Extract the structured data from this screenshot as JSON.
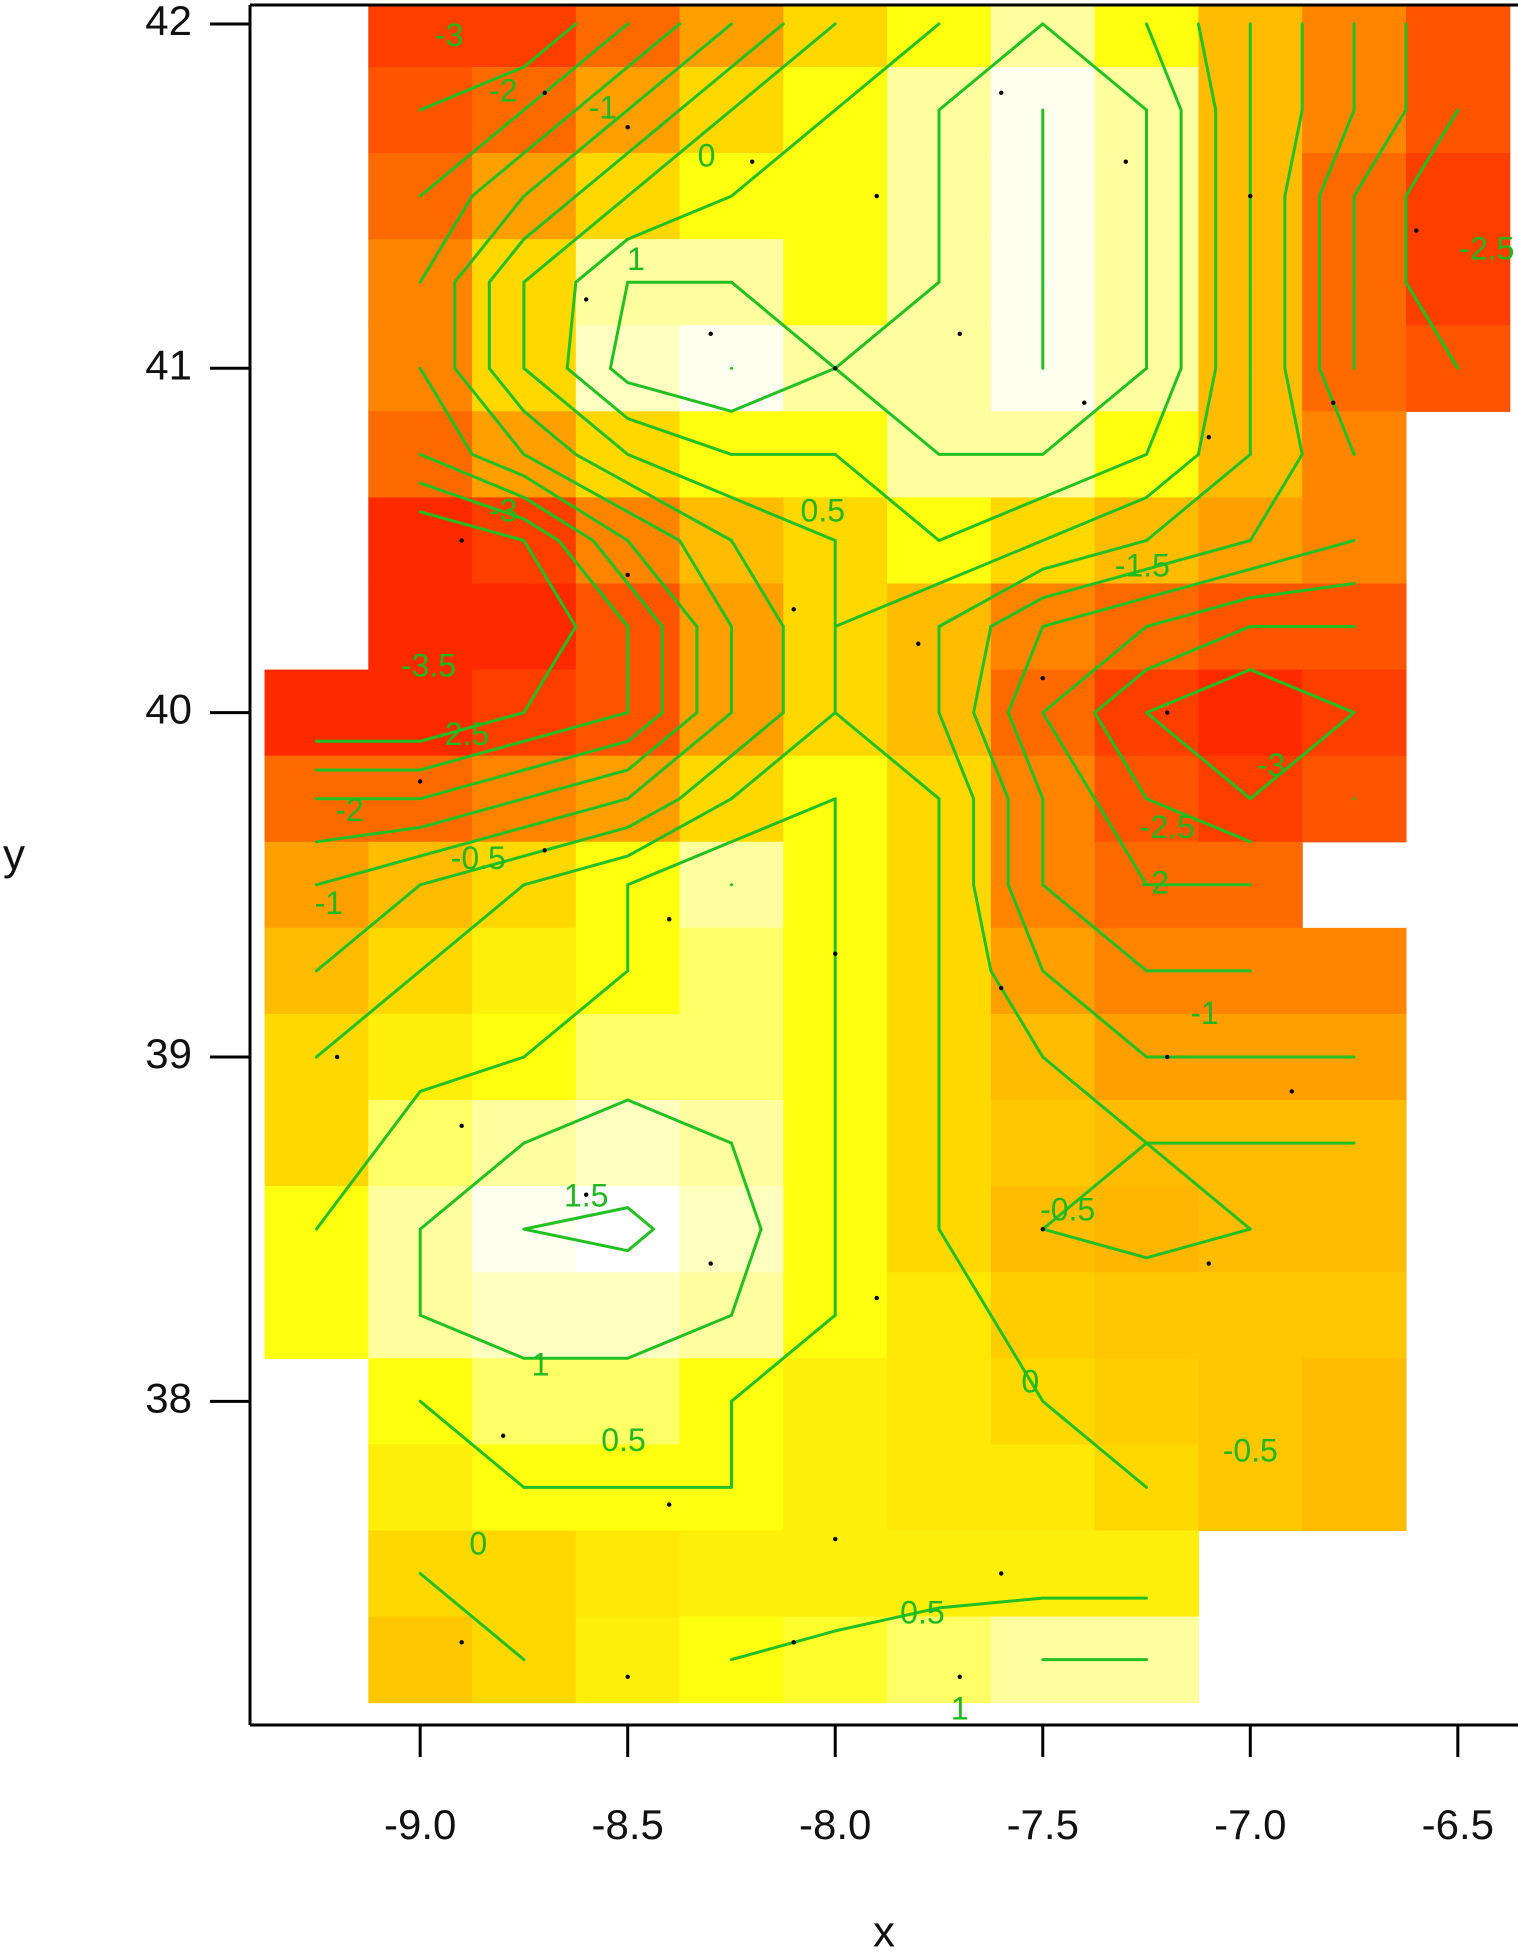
{
  "chart_data": {
    "type": "contour",
    "x_label": "x",
    "y_label": "y",
    "xlim": [
      -9.41,
      -6.355
    ],
    "ylim": [
      37.06,
      42.055
    ],
    "xticks": [
      {
        "value": -9,
        "label": "-9.0"
      },
      -8.5,
      {
        "value": -8,
        "label": "-8.0"
      },
      -7.5,
      {
        "value": -7,
        "label": "-7.0"
      },
      -6.5
    ],
    "yticks": [
      38,
      39,
      40,
      41,
      42
    ],
    "x": [
      -9.25,
      -9.0,
      -8.75,
      -8.5,
      -8.25,
      -8.0,
      -7.75,
      -7.5,
      -7.25,
      -7.0,
      -6.75,
      -6.5
    ],
    "y": [
      42.0,
      41.75,
      41.5,
      41.25,
      41.0,
      40.75,
      40.5,
      40.25,
      40.0,
      39.75,
      39.5,
      39.25,
      39.0,
      38.75,
      38.5,
      38.25,
      38.0,
      37.75,
      37.5,
      37.25
    ],
    "z": [
      [
        null,
        -3,
        -3,
        -2,
        -1,
        0,
        0.5,
        1,
        0.5,
        -0.5,
        -1.5,
        -2.5
      ],
      [
        null,
        -2.5,
        -2,
        -1,
        0,
        0.5,
        1,
        1.5,
        1,
        -0.5,
        -1.5,
        -2.5
      ],
      [
        null,
        -2,
        -1,
        0,
        0.5,
        0.5,
        1,
        1.5,
        1,
        -0.5,
        -2,
        -3
      ],
      [
        null,
        -1.5,
        0,
        1,
        1,
        0.5,
        1,
        1.5,
        1,
        -0.5,
        -2,
        -3
      ],
      [
        null,
        -1.5,
        0,
        1.2,
        1.5,
        1,
        1,
        1.5,
        1,
        -0.5,
        -2,
        -2.5
      ],
      [
        null,
        -2,
        -1,
        0,
        0.5,
        0.5,
        1,
        1,
        0.5,
        -0.5,
        -1.5,
        null
      ],
      [
        null,
        -3.5,
        -3,
        -1.5,
        -0.5,
        0,
        0.5,
        0,
        -0.5,
        -1,
        -1.5,
        null
      ],
      [
        null,
        -3.5,
        -3.5,
        -2.5,
        -1,
        0,
        -0.5,
        -1.5,
        -2,
        -2.5,
        -2.5,
        null
      ],
      [
        -3.5,
        -3.5,
        -3,
        -2.5,
        -1,
        0,
        -0.5,
        -2,
        -3,
        -3.5,
        -3,
        null
      ],
      [
        -2,
        -2,
        -1.5,
        -1,
        0,
        0.5,
        0,
        -1.5,
        -2.5,
        -3,
        -2.5,
        null
      ],
      [
        -1,
        -0.5,
        0,
        0.5,
        1,
        0.5,
        0,
        -1.5,
        -2,
        -2,
        null,
        null
      ],
      [
        -0.5,
        0,
        0.3,
        0.5,
        0.8,
        0.5,
        0,
        -1,
        -1.5,
        -1.5,
        -1.5,
        null
      ],
      [
        0,
        0.3,
        0.5,
        0.8,
        0.8,
        0.5,
        0,
        -0.5,
        -1,
        -1,
        -1,
        null
      ],
      [
        0,
        0.8,
        1,
        1.2,
        1,
        0.5,
        0,
        -0.3,
        -0.5,
        -0.5,
        -0.5,
        null
      ],
      [
        0.5,
        1,
        1.5,
        1.6,
        1.2,
        0.5,
        0,
        -0.5,
        -0.6,
        -0.5,
        -0.5,
        null
      ],
      [
        0.5,
        1,
        1.2,
        1.2,
        1,
        0.5,
        0.2,
        -0.2,
        -0.3,
        -0.3,
        -0.3,
        null
      ],
      [
        null,
        0.5,
        0.8,
        0.8,
        0.5,
        0.3,
        0.2,
        0,
        -0.2,
        -0.3,
        -0.5,
        null
      ],
      [
        null,
        0.3,
        0.5,
        0.5,
        0.5,
        0.3,
        0.2,
        0.2,
        0,
        -0.3,
        -0.5,
        null
      ],
      [
        null,
        0,
        0,
        0.2,
        0.3,
        0.3,
        0.3,
        0.3,
        0.3,
        null,
        null,
        null
      ],
      [
        null,
        -0.3,
        0,
        0.3,
        0.5,
        0.6,
        0.8,
        1,
        1,
        null,
        null,
        null
      ]
    ],
    "colorscale": [
      [
        -3.5,
        "#ff2a00"
      ],
      [
        -2,
        "#ff6a00"
      ],
      [
        -1,
        "#ffa000"
      ],
      [
        0,
        "#ffd800"
      ],
      [
        0.5,
        "#ffff10"
      ],
      [
        1,
        "#ffffa0"
      ],
      [
        1.6,
        "#ffffff"
      ]
    ],
    "contour_levels": [
      -3.5,
      -3,
      -2.5,
      -2,
      -1.5,
      -1,
      -0.5,
      0,
      0.5,
      1,
      1.5
    ],
    "contour_color": "#22c022",
    "contour_labels": [
      {
        "level": -3,
        "x": -8.93,
        "y": 41.96
      },
      {
        "level": -2,
        "x": -8.8,
        "y": 41.8
      },
      {
        "level": -1,
        "x": -8.56,
        "y": 41.75
      },
      {
        "level": 0,
        "x": -8.31,
        "y": 41.61
      },
      {
        "level": 1,
        "x": -8.48,
        "y": 41.31
      },
      {
        "level": -3,
        "x": -8.8,
        "y": 40.58
      },
      {
        "level": -3.5,
        "x": -8.98,
        "y": 40.13
      },
      {
        "level": -2.5,
        "x": -8.9,
        "y": 39.93
      },
      {
        "level": -2,
        "x": -9.17,
        "y": 39.71
      },
      {
        "level": -0.5,
        "x": -8.86,
        "y": 39.57
      },
      {
        "level": -1,
        "x": -9.22,
        "y": 39.44
      },
      {
        "level": 0.5,
        "x": -8.03,
        "y": 40.58
      },
      {
        "level": -1.5,
        "x": -7.26,
        "y": 40.42
      },
      {
        "level": -3,
        "x": -6.95,
        "y": 39.84
      },
      {
        "level": -2.5,
        "x": -7.2,
        "y": 39.66
      },
      {
        "level": -2,
        "x": -7.23,
        "y": 39.5
      },
      {
        "level": -1,
        "x": -7.11,
        "y": 39.12
      },
      {
        "level": -0.5,
        "x": -7.44,
        "y": 38.55
      },
      {
        "level": 1.5,
        "x": -8.6,
        "y": 38.59
      },
      {
        "level": 1,
        "x": -8.71,
        "y": 38.1
      },
      {
        "level": 0.5,
        "x": -8.51,
        "y": 37.88
      },
      {
        "level": 0,
        "x": -7.53,
        "y": 38.05
      },
      {
        "level": -0.5,
        "x": -7.0,
        "y": 37.85
      },
      {
        "level": 0,
        "x": -8.86,
        "y": 37.58
      },
      {
        "level": 0.5,
        "x": -7.79,
        "y": 37.38
      },
      {
        "level": 1,
        "x": -7.7,
        "y": 37.1
      },
      {
        "level": -2.5,
        "x": -6.43,
        "y": 41.34
      }
    ],
    "points": {
      "x": [
        -8.7,
        -8.5,
        -8.2,
        -7.9,
        -7.6,
        -7.3,
        -7.0,
        -6.6,
        -8.6,
        -8.3,
        -8.0,
        -7.7,
        -7.4,
        -7.1,
        -6.8,
        -8.9,
        -8.5,
        -8.1,
        -7.8,
        -7.5,
        -7.2,
        -9.0,
        -8.7,
        -8.4,
        -8.0,
        -7.6,
        -7.2,
        -6.9,
        -9.2,
        -8.9,
        -8.6,
        -8.3,
        -7.9,
        -7.5,
        -7.1,
        -8.8,
        -8.4,
        -8.0,
        -7.6,
        -8.9,
        -8.5,
        -8.1,
        -7.7
      ],
      "y": [
        41.8,
        41.7,
        41.6,
        41.5,
        41.8,
        41.6,
        41.5,
        41.4,
        41.2,
        41.1,
        41.0,
        41.1,
        40.9,
        40.8,
        40.9,
        40.5,
        40.4,
        40.3,
        40.2,
        40.1,
        40.0,
        39.8,
        39.6,
        39.4,
        39.3,
        39.2,
        39.0,
        38.9,
        39.0,
        38.8,
        38.6,
        38.4,
        38.3,
        38.5,
        38.4,
        37.9,
        37.7,
        37.6,
        37.5,
        37.3,
        37.2,
        37.3,
        37.2
      ],
      "color": "#000000"
    }
  }
}
